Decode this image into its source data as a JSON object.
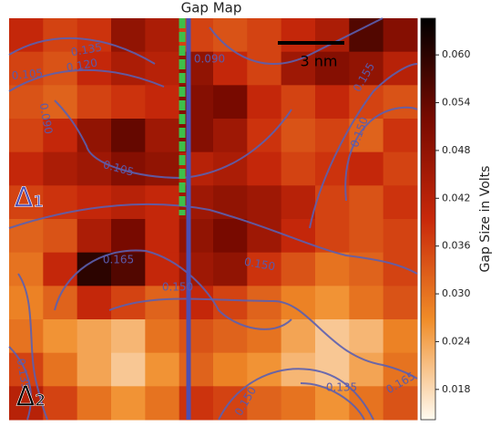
{
  "chart_data": {
    "type": "heatmap",
    "title": "Gap Map",
    "colorbar_label": "Gap Size in Volts",
    "scale_bar_label": "3 nm",
    "colormap": [
      "#fffaf0",
      "#f08c28",
      "#c8280a",
      "#780a00",
      "#000000"
    ],
    "clim": [
      0.0142,
      0.0646
    ],
    "cticks": [
      {
        "value": 0.018,
        "label": "0.018"
      },
      {
        "value": 0.024,
        "label": "0.024"
      },
      {
        "value": 0.03,
        "label": "0.030"
      },
      {
        "value": 0.036,
        "label": "0.036"
      },
      {
        "value": 0.042,
        "label": "0.042"
      },
      {
        "value": 0.048,
        "label": "0.048"
      },
      {
        "value": 0.054,
        "label": "0.054"
      },
      {
        "value": 0.06,
        "label": "0.060"
      }
    ],
    "contour_labels": [
      "0.135",
      "0.120",
      "0.105",
      "0.090",
      "0.090",
      "0.155",
      "0.150",
      "0.105",
      "0.165",
      "0.150",
      "0.150",
      "0.165",
      "0.135",
      "0.150",
      "0.135"
    ],
    "region_labels": [
      "Δ₁",
      "Δ₂"
    ],
    "z": [
      [
        0.04,
        0.036,
        0.038,
        0.048,
        0.044,
        0.036,
        0.034,
        0.036,
        0.04,
        0.044,
        0.056,
        0.05
      ],
      [
        0.036,
        0.034,
        0.04,
        0.044,
        0.042,
        0.048,
        0.04,
        0.036,
        0.046,
        0.05,
        0.048,
        0.042
      ],
      [
        0.034,
        0.032,
        0.036,
        0.038,
        0.04,
        0.05,
        0.052,
        0.04,
        0.036,
        0.04,
        0.036,
        0.034
      ],
      [
        0.036,
        0.04,
        0.048,
        0.054,
        0.046,
        0.05,
        0.046,
        0.038,
        0.034,
        0.036,
        0.032,
        0.038
      ],
      [
        0.04,
        0.044,
        0.046,
        0.05,
        0.048,
        0.042,
        0.044,
        0.04,
        0.036,
        0.038,
        0.04,
        0.036
      ],
      [
        0.036,
        0.038,
        0.04,
        0.042,
        0.04,
        0.046,
        0.048,
        0.046,
        0.042,
        0.036,
        0.034,
        0.038
      ],
      [
        0.032,
        0.034,
        0.044,
        0.052,
        0.04,
        0.048,
        0.052,
        0.046,
        0.04,
        0.036,
        0.034,
        0.036
      ],
      [
        0.03,
        0.04,
        0.06,
        0.056,
        0.04,
        0.046,
        0.048,
        0.038,
        0.034,
        0.03,
        0.032,
        0.036
      ],
      [
        0.028,
        0.032,
        0.04,
        0.036,
        0.032,
        0.04,
        0.036,
        0.032,
        0.028,
        0.026,
        0.03,
        0.034
      ],
      [
        0.03,
        0.026,
        0.024,
        0.022,
        0.03,
        0.034,
        0.032,
        0.03,
        0.024,
        0.02,
        0.022,
        0.028
      ],
      [
        0.036,
        0.03,
        0.024,
        0.02,
        0.026,
        0.032,
        0.028,
        0.026,
        0.022,
        0.02,
        0.024,
        0.03
      ],
      [
        0.042,
        0.036,
        0.03,
        0.026,
        0.03,
        0.038,
        0.036,
        0.032,
        0.03,
        0.026,
        0.03,
        0.034
      ]
    ]
  }
}
